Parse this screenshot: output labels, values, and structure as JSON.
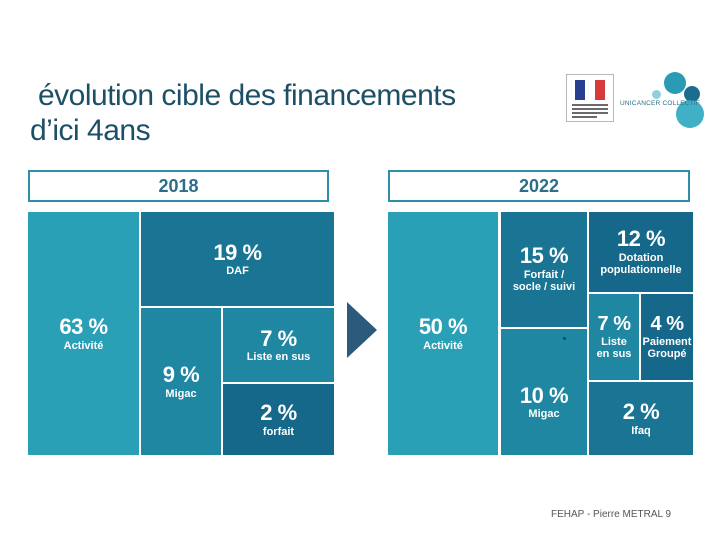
{
  "slide": {
    "title_line1": "évolution cible des financements",
    "title_line2": "d’ici 4ans",
    "footer": "FEHAP - Pierre METRAL",
    "page_number": "9",
    "logo_text": "Unicancer collectif"
  },
  "panel_2018": {
    "year": "2018",
    "cells": {
      "activite": {
        "pct": "63 %",
        "label": "Activité"
      },
      "daf": {
        "pct": "19 %",
        "label": "DAF"
      },
      "migac": {
        "pct": "9 %",
        "label": "Migac"
      },
      "liste": {
        "pct": "7 %",
        "label": "Liste en sus"
      },
      "forfait": {
        "pct": "2 %",
        "label": "forfait"
      }
    }
  },
  "panel_2022": {
    "year": "2022",
    "cells": {
      "activite": {
        "pct": "50 %",
        "label": "Activité"
      },
      "forfait": {
        "pct": "15 %",
        "label_line1": "Forfait /",
        "label_line2": "socle / suivi"
      },
      "dotation": {
        "pct": "12 %",
        "label_line1": "Dotation",
        "label_line2": "populationnelle"
      },
      "liste": {
        "pct": "7 %",
        "label_line1": "Liste",
        "label_line2": "en sus"
      },
      "paiement": {
        "pct": "4 %",
        "label_line1": "Paiement",
        "label_line2": "Groupé"
      },
      "migac": {
        "pct": "10 %",
        "label": "Migac"
      },
      "ifaq": {
        "pct": "2 %",
        "label": "Ifaq"
      }
    }
  },
  "colors": {
    "title": "#1d4f66",
    "light": "#2aa0b6",
    "mid": "#1f87a1",
    "dark": "#1a7594",
    "darker": "#16688a"
  }
}
